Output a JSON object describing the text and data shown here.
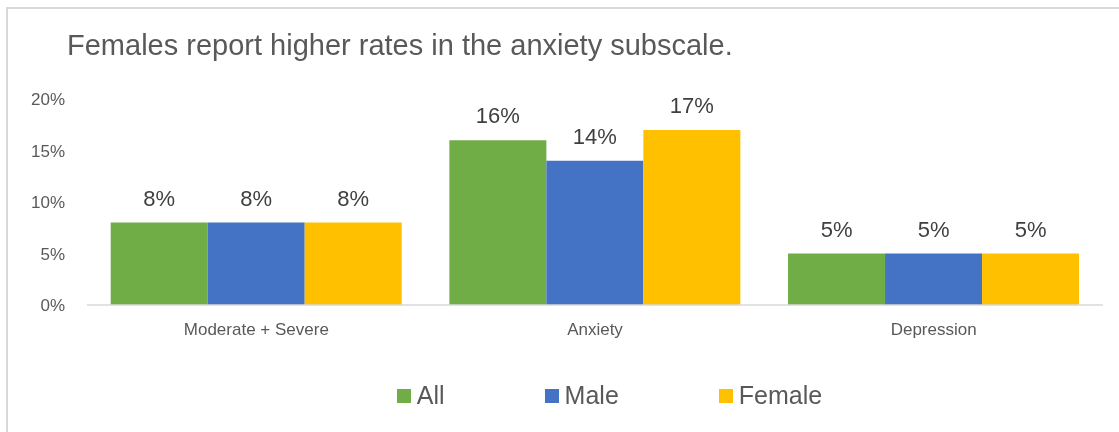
{
  "chart_data": {
    "type": "bar",
    "title": "Females report higher rates in the anxiety subscale.",
    "categories": [
      "Moderate + Severe",
      "Anxiety",
      "Depression"
    ],
    "series": [
      {
        "name": "All",
        "color": "#70ad47",
        "values": [
          8,
          16,
          5
        ],
        "value_labels": [
          "8%",
          "16%",
          "5%"
        ]
      },
      {
        "name": "Male",
        "color": "#4472c4",
        "values": [
          8,
          14,
          5
        ],
        "value_labels": [
          "8%",
          "14%",
          "5%"
        ]
      },
      {
        "name": "Female",
        "color": "#ffc000",
        "values": [
          8,
          17,
          5
        ],
        "value_labels": [
          "8%",
          "17%",
          "5%"
        ]
      }
    ],
    "ylim": [
      0,
      20
    ],
    "yticks": [
      {
        "value": 0,
        "label": "0%"
      },
      {
        "value": 5,
        "label": "5%"
      },
      {
        "value": 10,
        "label": "10%"
      },
      {
        "value": 15,
        "label": "15%"
      },
      {
        "value": 20,
        "label": "20%"
      }
    ],
    "legend": "bottom"
  }
}
